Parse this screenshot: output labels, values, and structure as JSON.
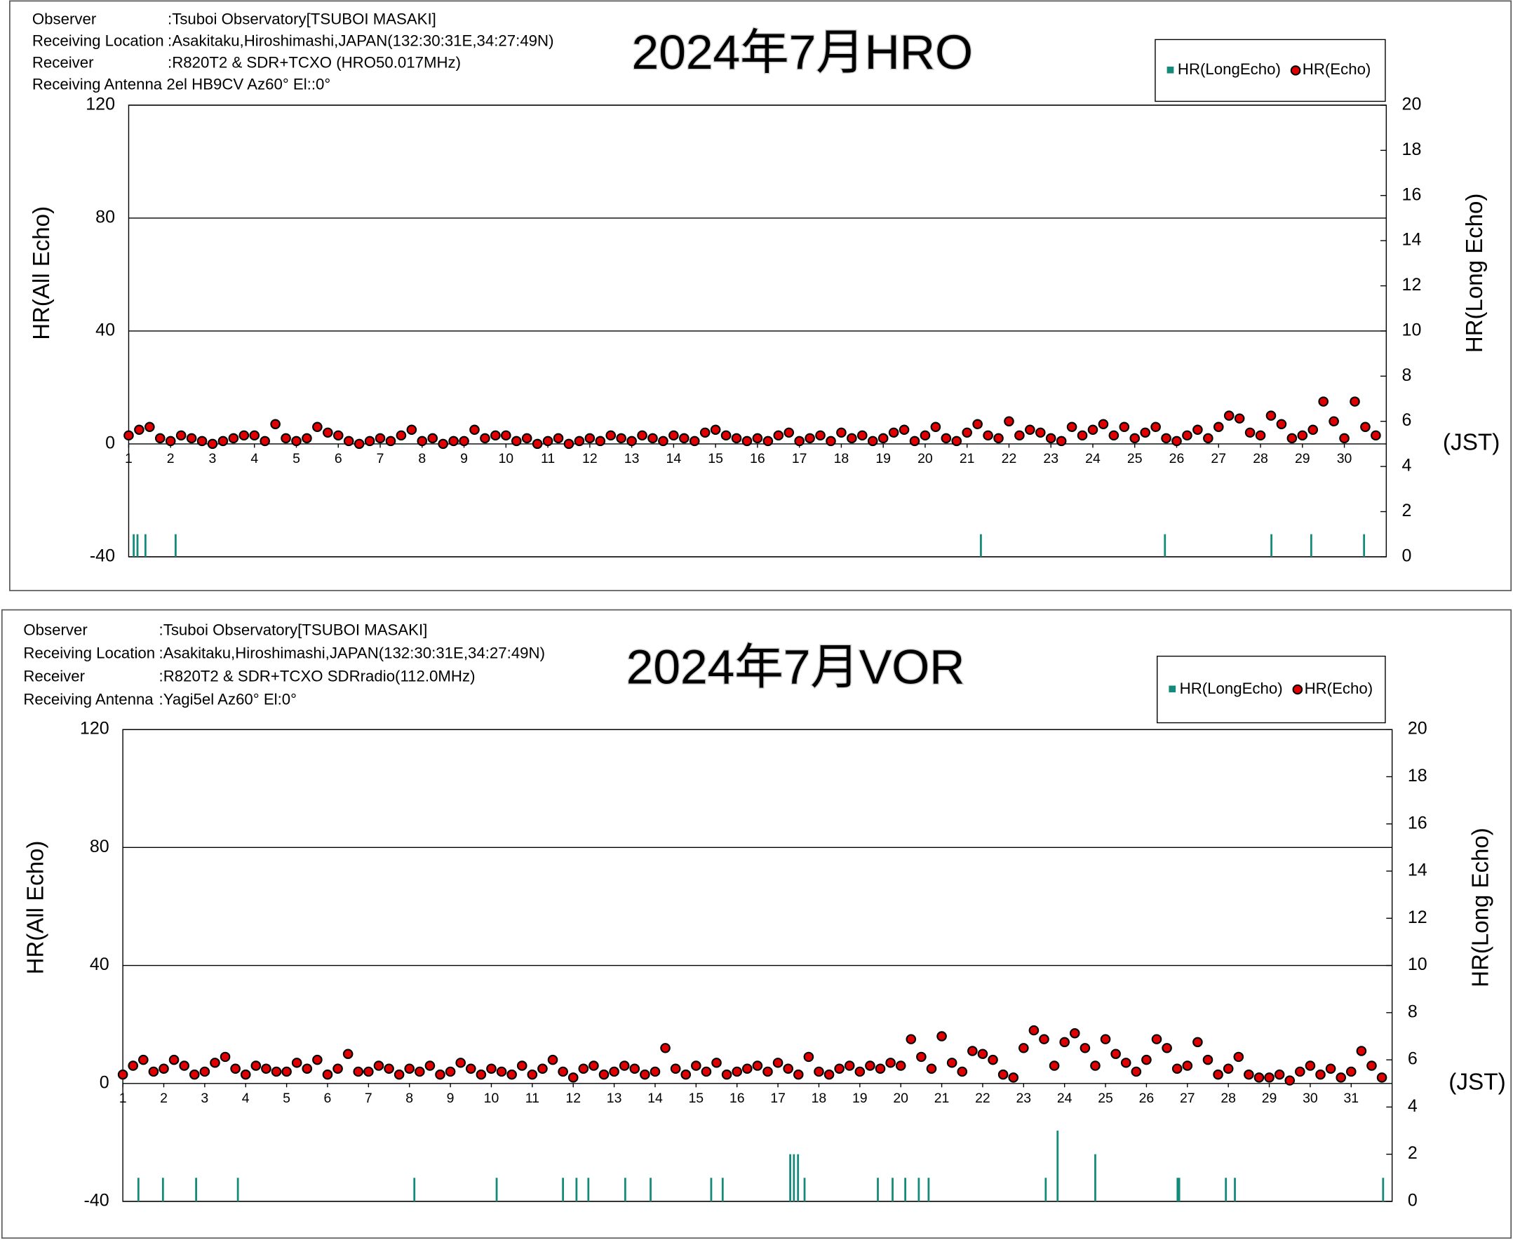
{
  "chart_data": [
    {
      "type": "scatter",
      "header": [
        {
          "label": "Observer",
          "value": ":Tsuboi Observatory[TSUBOI MASAKI]"
        },
        {
          "label": "Receiving Location",
          "value": ":Asakitaku,Hiroshimashi,JAPAN(132:30:31E,34:27:49N)"
        },
        {
          "label": "Receiver",
          "value": ":R820T2 & SDR+TCXO (HRO50.017MHz)"
        },
        {
          "label": "Receiving Antenna 2el HB9CV  Az60°  El::0°"
        }
      ],
      "title": "2024年7月HRO",
      "y_label": "HR(All Echo)",
      "y2_label": "HR(Long Echo)",
      "x_note": "(JST)",
      "legend": "upper right",
      "xlim": [
        1,
        31
      ],
      "xticks": [
        1,
        2,
        3,
        4,
        5,
        6,
        7,
        8,
        9,
        10,
        11,
        12,
        13,
        14,
        15,
        16,
        17,
        18,
        19,
        20,
        21,
        22,
        23,
        24,
        25,
        26,
        27,
        28,
        29,
        30
      ],
      "ylim": [
        -40,
        120
      ],
      "yticks": [
        -40,
        0,
        40,
        80,
        120
      ],
      "y2lim": [
        0,
        20
      ],
      "y2ticks": [
        0,
        2,
        4,
        6,
        8,
        10,
        12,
        14,
        16,
        18,
        20
      ],
      "grid": true,
      "series": [
        {
          "name": "HR(LongEcho)",
          "color": "#138a7a",
          "axis": "y2",
          "x": [
            1.12,
            1.21,
            1.4,
            2.12,
            21.33,
            25.72,
            28.26,
            29.21,
            30.47
          ],
          "values": [
            1,
            1,
            1,
            1,
            1,
            1,
            1,
            1,
            1
          ]
        },
        {
          "name": "HR(Echo)",
          "color": "#e00000",
          "x": [
            1,
            1.25,
            1.5,
            1.75,
            2,
            2.25,
            2.5,
            2.75,
            3,
            3.25,
            3.5,
            3.75,
            4,
            4.25,
            4.5,
            4.75,
            5,
            5.25,
            5.5,
            5.75,
            6,
            6.25,
            6.5,
            6.75,
            7,
            7.25,
            7.5,
            7.75,
            8,
            8.25,
            8.5,
            8.75,
            9,
            9.25,
            9.5,
            9.75,
            10,
            10.25,
            10.5,
            10.75,
            11,
            11.25,
            11.5,
            11.75,
            12,
            12.25,
            12.5,
            12.75,
            13,
            13.25,
            13.5,
            13.75,
            14,
            14.25,
            14.5,
            14.75,
            15,
            15.25,
            15.5,
            15.75,
            16,
            16.25,
            16.5,
            16.75,
            17,
            17.25,
            17.5,
            17.75,
            18,
            18.25,
            18.5,
            18.75,
            19,
            19.25,
            19.5,
            19.75,
            20,
            20.25,
            20.5,
            20.75,
            21,
            21.25,
            21.5,
            21.75,
            22,
            22.25,
            22.5,
            22.75,
            23,
            23.25,
            23.5,
            23.75,
            24,
            24.25,
            24.5,
            24.75,
            25,
            25.25,
            25.5,
            25.75,
            26,
            26.25,
            26.5,
            26.75,
            27,
            27.25,
            27.5,
            27.75,
            28,
            28.25,
            28.5,
            28.75,
            29,
            29.25,
            29.5,
            29.75,
            30,
            30.25,
            30.5,
            30.75
          ],
          "values": [
            3,
            5,
            6,
            2,
            1,
            3,
            2,
            1,
            0,
            1,
            2,
            3,
            3,
            1,
            7,
            2,
            1,
            2,
            6,
            4,
            3,
            1,
            0,
            1,
            2,
            1,
            3,
            5,
            1,
            2,
            0,
            1,
            1,
            5,
            2,
            3,
            3,
            1,
            2,
            0,
            1,
            2,
            0,
            1,
            2,
            1,
            3,
            2,
            1,
            3,
            2,
            1,
            3,
            2,
            1,
            4,
            5,
            3,
            2,
            1,
            2,
            1,
            3,
            4,
            1,
            2,
            3,
            1,
            4,
            2,
            3,
            1,
            2,
            4,
            5,
            1,
            3,
            6,
            2,
            1,
            4,
            7,
            3,
            2,
            8,
            3,
            5,
            4,
            2,
            1,
            6,
            3,
            5,
            7,
            3,
            6,
            2,
            4,
            6,
            2,
            1,
            3,
            5,
            2,
            6,
            10,
            9,
            4,
            3,
            10,
            7,
            2,
            3,
            5,
            15,
            8,
            2,
            15,
            6,
            3
          ]
        }
      ]
    },
    {
      "type": "scatter",
      "header": [
        {
          "label": "Observer",
          "value": ":Tsuboi Observatory[TSUBOI MASAKI]"
        },
        {
          "label": "Receiving Location",
          "value": ":Asakitaku,Hiroshimashi,JAPAN(132:30:31E,34:27:49N)"
        },
        {
          "label": "Receiver",
          "value": ":R820T2 & SDR+TCXO SDRradio(112.0MHz)"
        },
        {
          "label": "Receiving Antenna",
          "value": ":Yagi5el   Az60°  El:0°"
        }
      ],
      "title": "2024年7月VOR",
      "y_label": "HR(All Echo)",
      "y2_label": "HR(Long Echo)",
      "x_note": "(JST)",
      "legend": "upper right",
      "xlim": [
        1,
        32
      ],
      "xticks": [
        1,
        2,
        3,
        4,
        5,
        6,
        7,
        8,
        9,
        10,
        11,
        12,
        13,
        14,
        15,
        16,
        17,
        18,
        19,
        20,
        21,
        22,
        23,
        24,
        25,
        26,
        27,
        28,
        29,
        30,
        31
      ],
      "ylim": [
        -40,
        120
      ],
      "yticks": [
        -40,
        0,
        40,
        80,
        120
      ],
      "y2lim": [
        0,
        20
      ],
      "y2ticks": [
        0,
        2,
        4,
        6,
        8,
        10,
        12,
        14,
        16,
        18,
        20
      ],
      "grid": true,
      "series": [
        {
          "name": "HR(LongEcho)",
          "color": "#138a7a",
          "axis": "y2",
          "x": [
            1.38,
            1.98,
            2.79,
            3.81,
            8.12,
            10.13,
            11.75,
            12.08,
            12.37,
            13.27,
            13.89,
            15.37,
            15.65,
            17.3,
            17.39,
            17.49,
            17.65,
            19.44,
            19.8,
            20.11,
            20.44,
            20.68,
            23.54,
            23.83,
            24.75,
            26.76,
            26.8,
            27.94,
            28.16,
            31.78
          ],
          "values": [
            1,
            1,
            1,
            1,
            1,
            1,
            1,
            1,
            1,
            1,
            1,
            1,
            1,
            2,
            2,
            2,
            1,
            1,
            1,
            1,
            1,
            1,
            1,
            3,
            2,
            1,
            1,
            1,
            1,
            1
          ]
        },
        {
          "name": "HR(Echo)",
          "color": "#e00000",
          "x": [
            1,
            1.25,
            1.5,
            1.75,
            2,
            2.25,
            2.5,
            2.75,
            3,
            3.25,
            3.5,
            3.75,
            4,
            4.25,
            4.5,
            4.75,
            5,
            5.25,
            5.5,
            5.75,
            6,
            6.25,
            6.5,
            6.75,
            7,
            7.25,
            7.5,
            7.75,
            8,
            8.25,
            8.5,
            8.75,
            9,
            9.25,
            9.5,
            9.75,
            10,
            10.25,
            10.5,
            10.75,
            11,
            11.25,
            11.5,
            11.75,
            12,
            12.25,
            12.5,
            12.75,
            13,
            13.25,
            13.5,
            13.75,
            14,
            14.25,
            14.5,
            14.75,
            15,
            15.25,
            15.5,
            15.75,
            16,
            16.25,
            16.5,
            16.75,
            17,
            17.25,
            17.5,
            17.75,
            18,
            18.25,
            18.5,
            18.75,
            19,
            19.25,
            19.5,
            19.75,
            20,
            20.25,
            20.5,
            20.75,
            21,
            21.25,
            21.5,
            21.75,
            22,
            22.25,
            22.5,
            22.75,
            23,
            23.25,
            23.5,
            23.75,
            24,
            24.25,
            24.5,
            24.75,
            25,
            25.25,
            25.5,
            25.75,
            26,
            26.25,
            26.5,
            26.75,
            27,
            27.25,
            27.5,
            27.75,
            28,
            28.25,
            28.5,
            28.75,
            29,
            29.25,
            29.5,
            29.75,
            30,
            30.25,
            30.5,
            30.75,
            31,
            31.25,
            31.5,
            31.75
          ],
          "values": [
            3,
            6,
            8,
            4,
            5,
            8,
            6,
            3,
            4,
            7,
            9,
            5,
            3,
            6,
            5,
            4,
            4,
            7,
            5,
            8,
            3,
            5,
            10,
            4,
            4,
            6,
            5,
            3,
            5,
            4,
            6,
            3,
            4,
            7,
            5,
            3,
            5,
            4,
            3,
            6,
            3,
            5,
            8,
            4,
            2,
            5,
            6,
            3,
            4,
            6,
            5,
            3,
            4,
            12,
            5,
            3,
            6,
            4,
            7,
            3,
            4,
            5,
            6,
            4,
            7,
            5,
            3,
            9,
            4,
            3,
            5,
            6,
            4,
            6,
            5,
            7,
            6,
            15,
            9,
            5,
            16,
            7,
            4,
            11,
            10,
            8,
            3,
            2,
            12,
            18,
            15,
            6,
            14,
            17,
            12,
            6,
            15,
            10,
            7,
            4,
            8,
            15,
            12,
            5,
            6,
            14,
            8,
            3,
            5,
            9,
            3,
            2,
            2,
            3,
            1,
            4,
            6,
            3,
            5,
            2,
            4,
            11,
            6,
            2
          ]
        }
      ]
    }
  ]
}
